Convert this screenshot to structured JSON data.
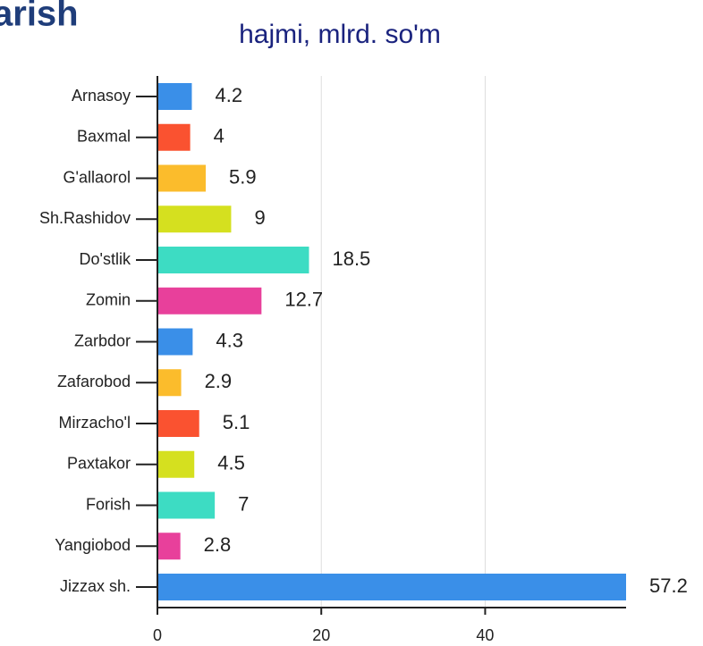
{
  "chart_data": {
    "type": "barh",
    "title": "arish",
    "subtitle": "hajmi, mlrd. so'm",
    "categories": [
      "Arnasoy",
      "Baxmal",
      "G'allaorol",
      "Sh.Rashidov",
      "Do'stlik",
      "Zomin",
      "Zarbdor",
      "Zafarobod",
      "Mirzacho'l",
      "Paxtakor",
      "Forish",
      "Yangiobod",
      "Jizzax sh."
    ],
    "values": [
      4.2,
      4,
      5.9,
      9,
      18.5,
      12.7,
      4.3,
      2.9,
      5.1,
      4.5,
      7,
      2.8,
      57.2
    ],
    "colors": [
      "#3a8fe8",
      "#fa5230",
      "#fbbc2c",
      "#d5e01f",
      "#3ddcc3",
      "#e8409b",
      "#3a8fe8",
      "#fbbc2c",
      "#fa5230",
      "#d5e01f",
      "#3ddcc3",
      "#e8409b",
      "#3a8fe8"
    ],
    "xlim": [
      0,
      57.2
    ],
    "xticks": [
      0,
      20,
      40
    ],
    "grid": true
  }
}
